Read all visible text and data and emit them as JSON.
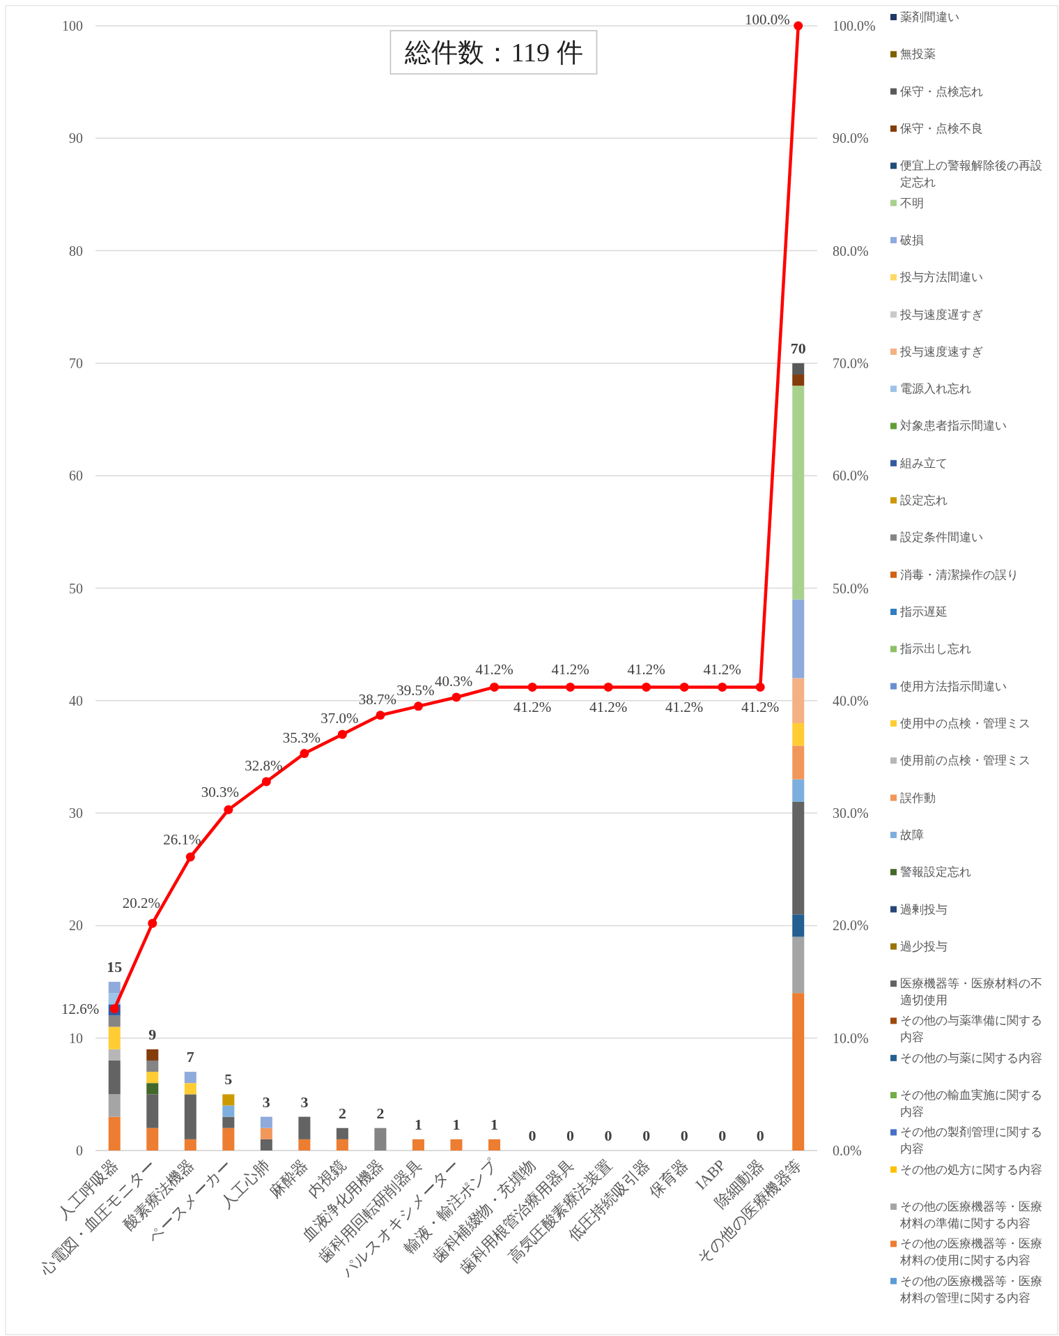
{
  "chart_data": {
    "type": "bar",
    "stacked": true,
    "title": "総件数：119 件",
    "grid": "y",
    "legend": "right",
    "categories": [
      "人工呼吸器",
      "心電図・血圧モニター",
      "酸素療法機器",
      "ペースメーカー",
      "人工心肺",
      "麻酔器",
      "内視鏡",
      "血液浄化用機器",
      "歯科用回転研削器具",
      "パルスオキシメーター",
      "輸液・輸注ポンプ",
      "歯科補綴物・充填物",
      "歯科用根管治療用器具",
      "高気圧酸素療法装置",
      "低圧持続吸引器",
      "保育器",
      "IABP",
      "除細動器",
      "その他の医療機器等"
    ],
    "ylim": [
      0,
      100
    ],
    "yticks": [
      0,
      10,
      20,
      30,
      40,
      50,
      60,
      70,
      80,
      90,
      100
    ],
    "y2lim": [
      0,
      100
    ],
    "y2ticks": [
      {
        "value": 0,
        "label": "0.0%"
      },
      {
        "value": 10,
        "label": "10.0%"
      },
      {
        "value": 20,
        "label": "20.0%"
      },
      {
        "value": 30,
        "label": "30.0%"
      },
      {
        "value": 40,
        "label": "40.0%"
      },
      {
        "value": 50,
        "label": "50.0%"
      },
      {
        "value": 60,
        "label": "60.0%"
      },
      {
        "value": 70,
        "label": "70.0%"
      },
      {
        "value": 80,
        "label": "80.0%"
      },
      {
        "value": 90,
        "label": "90.0%"
      },
      {
        "value": 100,
        "label": "100.0%"
      }
    ],
    "totals": [
      "15",
      "9",
      "7",
      "5",
      "3",
      "3",
      "2",
      "2",
      "1",
      "1",
      "1",
      "0",
      "0",
      "0",
      "0",
      "0",
      "0",
      "0",
      "70"
    ],
    "series": [
      {
        "name": "その他の医療機器等・医療材料の管理に関する内容",
        "color": "#5b9bd5",
        "values": [
          0,
          0,
          0,
          0,
          0,
          0,
          0,
          0,
          0,
          0,
          0,
          0,
          0,
          0,
          0,
          0,
          0,
          0,
          0
        ]
      },
      {
        "name": "その他の医療機器等・医療材料の使用に関する内容",
        "color": "#ed7d31",
        "values": [
          3,
          2,
          1,
          2,
          0,
          1,
          1,
          0,
          1,
          1,
          1,
          0,
          0,
          0,
          0,
          0,
          0,
          0,
          14
        ]
      },
      {
        "name": "その他の医療機器等・医療材料の準備に関する内容",
        "color": "#a5a5a5",
        "values": [
          2,
          0,
          0,
          0,
          0,
          0,
          0,
          0,
          0,
          0,
          0,
          0,
          0,
          0,
          0,
          0,
          0,
          0,
          5
        ]
      },
      {
        "name": "その他の処方に関する内容",
        "color": "#ffc000",
        "values": [
          0,
          0,
          0,
          0,
          0,
          0,
          0,
          0,
          0,
          0,
          0,
          0,
          0,
          0,
          0,
          0,
          0,
          0,
          0
        ]
      },
      {
        "name": "その他の製剤管理に関する内容",
        "color": "#4472c4",
        "values": [
          0,
          0,
          0,
          0,
          0,
          0,
          0,
          0,
          0,
          0,
          0,
          0,
          0,
          0,
          0,
          0,
          0,
          0,
          0
        ]
      },
      {
        "name": "その他の輸血実施に関する内容",
        "color": "#70ad47",
        "values": [
          0,
          0,
          0,
          0,
          0,
          0,
          0,
          0,
          0,
          0,
          0,
          0,
          0,
          0,
          0,
          0,
          0,
          0,
          0
        ]
      },
      {
        "name": "その他の与薬に関する内容",
        "color": "#255e91",
        "values": [
          0,
          0,
          0,
          0,
          0,
          0,
          0,
          0,
          0,
          0,
          0,
          0,
          0,
          0,
          0,
          0,
          0,
          0,
          2
        ]
      },
      {
        "name": "その他の与薬準備に関する内容",
        "color": "#9e480e",
        "values": [
          0,
          0,
          0,
          0,
          0,
          0,
          0,
          0,
          0,
          0,
          0,
          0,
          0,
          0,
          0,
          0,
          0,
          0,
          0
        ]
      },
      {
        "name": "医療機器等・医療材料の不適切使用",
        "color": "#636363",
        "values": [
          3,
          3,
          4,
          1,
          1,
          2,
          1,
          0,
          0,
          0,
          0,
          0,
          0,
          0,
          0,
          0,
          0,
          0,
          10
        ]
      },
      {
        "name": "過少投与",
        "color": "#997300",
        "values": [
          0,
          0,
          0,
          0,
          0,
          0,
          0,
          0,
          0,
          0,
          0,
          0,
          0,
          0,
          0,
          0,
          0,
          0,
          0
        ]
      },
      {
        "name": "過剰投与",
        "color": "#264478",
        "values": [
          0,
          0,
          0,
          0,
          0,
          0,
          0,
          0,
          0,
          0,
          0,
          0,
          0,
          0,
          0,
          0,
          0,
          0,
          0
        ]
      },
      {
        "name": "警報設定忘れ",
        "color": "#43682b",
        "values": [
          0,
          1,
          0,
          0,
          0,
          0,
          0,
          0,
          0,
          0,
          0,
          0,
          0,
          0,
          0,
          0,
          0,
          0,
          0
        ]
      },
      {
        "name": "故障",
        "color": "#7cafdd",
        "values": [
          0,
          0,
          0,
          1,
          0,
          0,
          0,
          0,
          0,
          0,
          0,
          0,
          0,
          0,
          0,
          0,
          0,
          0,
          2
        ]
      },
      {
        "name": "誤作動",
        "color": "#f1975a",
        "values": [
          0,
          0,
          0,
          0,
          1,
          0,
          0,
          0,
          0,
          0,
          0,
          0,
          0,
          0,
          0,
          0,
          0,
          0,
          3
        ]
      },
      {
        "name": "使用前の点検・管理ミス",
        "color": "#b7b7b7",
        "values": [
          1,
          0,
          0,
          0,
          0,
          0,
          0,
          0,
          0,
          0,
          0,
          0,
          0,
          0,
          0,
          0,
          0,
          0,
          0
        ]
      },
      {
        "name": "使用中の点検・管理ミス",
        "color": "#ffcd33",
        "values": [
          2,
          1,
          1,
          0,
          0,
          0,
          0,
          0,
          0,
          0,
          0,
          0,
          0,
          0,
          0,
          0,
          0,
          0,
          2
        ]
      },
      {
        "name": "使用方法指示間違い",
        "color": "#698ed0",
        "values": [
          0,
          0,
          0,
          0,
          0,
          0,
          0,
          0,
          0,
          0,
          0,
          0,
          0,
          0,
          0,
          0,
          0,
          0,
          0
        ]
      },
      {
        "name": "指示出し忘れ",
        "color": "#8cc168",
        "values": [
          0,
          0,
          0,
          0,
          0,
          0,
          0,
          0,
          0,
          0,
          0,
          0,
          0,
          0,
          0,
          0,
          0,
          0,
          0
        ]
      },
      {
        "name": "指示遅延",
        "color": "#327dc2",
        "values": [
          0,
          0,
          0,
          0,
          0,
          0,
          0,
          0,
          0,
          0,
          0,
          0,
          0,
          0,
          0,
          0,
          0,
          0,
          0
        ]
      },
      {
        "name": "消毒・清潔操作の誤り",
        "color": "#d26012",
        "values": [
          0,
          0,
          0,
          0,
          0,
          0,
          0,
          0,
          0,
          0,
          0,
          0,
          0,
          0,
          0,
          0,
          0,
          0,
          0
        ]
      },
      {
        "name": "設定条件間違い",
        "color": "#848484",
        "values": [
          1,
          1,
          0,
          0,
          0,
          0,
          0,
          2,
          0,
          0,
          0,
          0,
          0,
          0,
          0,
          0,
          0,
          0,
          0
        ]
      },
      {
        "name": "設定忘れ",
        "color": "#cc9a00",
        "values": [
          0,
          0,
          0,
          1,
          0,
          0,
          0,
          0,
          0,
          0,
          0,
          0,
          0,
          0,
          0,
          0,
          0,
          0,
          0
        ]
      },
      {
        "name": "組み立て",
        "color": "#335aa1",
        "values": [
          1,
          0,
          0,
          0,
          0,
          0,
          0,
          0,
          0,
          0,
          0,
          0,
          0,
          0,
          0,
          0,
          0,
          0,
          0
        ]
      },
      {
        "name": "対象患者指示間違い",
        "color": "#5e9e37",
        "values": [
          0,
          0,
          0,
          0,
          0,
          0,
          0,
          0,
          0,
          0,
          0,
          0,
          0,
          0,
          0,
          0,
          0,
          0,
          0
        ]
      },
      {
        "name": "電源入れ忘れ",
        "color": "#9dc3e6",
        "values": [
          1,
          0,
          0,
          0,
          0,
          0,
          0,
          0,
          0,
          0,
          0,
          0,
          0,
          0,
          0,
          0,
          0,
          0,
          0
        ]
      },
      {
        "name": "投与速度速すぎ",
        "color": "#f4b183",
        "values": [
          0,
          0,
          0,
          0,
          0,
          0,
          0,
          0,
          0,
          0,
          0,
          0,
          0,
          0,
          0,
          0,
          0,
          0,
          4
        ]
      },
      {
        "name": "投与速度遅すぎ",
        "color": "#c9c9c9",
        "values": [
          0,
          0,
          0,
          0,
          0,
          0,
          0,
          0,
          0,
          0,
          0,
          0,
          0,
          0,
          0,
          0,
          0,
          0,
          0
        ]
      },
      {
        "name": "投与方法間違い",
        "color": "#ffd966",
        "values": [
          0,
          0,
          0,
          0,
          0,
          0,
          0,
          0,
          0,
          0,
          0,
          0,
          0,
          0,
          0,
          0,
          0,
          0,
          0
        ]
      },
      {
        "name": "破損",
        "color": "#8faadc",
        "values": [
          1,
          0,
          1,
          0,
          1,
          0,
          0,
          0,
          0,
          0,
          0,
          0,
          0,
          0,
          0,
          0,
          0,
          0,
          7
        ]
      },
      {
        "name": "不明",
        "color": "#a9d18e",
        "values": [
          0,
          0,
          0,
          0,
          0,
          0,
          0,
          0,
          0,
          0,
          0,
          0,
          0,
          0,
          0,
          0,
          0,
          0,
          19
        ]
      },
      {
        "name": "便宜上の警報解除後の再設定忘れ",
        "color": "#1f4e79",
        "values": [
          0,
          0,
          0,
          0,
          0,
          0,
          0,
          0,
          0,
          0,
          0,
          0,
          0,
          0,
          0,
          0,
          0,
          0,
          0
        ]
      },
      {
        "name": "保守・点検不良",
        "color": "#843c0c",
        "values": [
          0,
          1,
          0,
          0,
          0,
          0,
          0,
          0,
          0,
          0,
          0,
          0,
          0,
          0,
          0,
          0,
          0,
          0,
          1
        ]
      },
      {
        "name": "保守・点検忘れ",
        "color": "#595959",
        "values": [
          0,
          0,
          0,
          0,
          0,
          0,
          0,
          0,
          0,
          0,
          0,
          0,
          0,
          0,
          0,
          0,
          0,
          0,
          1
        ]
      },
      {
        "name": "無投薬",
        "color": "#7f6000",
        "values": [
          0,
          0,
          0,
          0,
          0,
          0,
          0,
          0,
          0,
          0,
          0,
          0,
          0,
          0,
          0,
          0,
          0,
          0,
          0
        ]
      },
      {
        "name": "薬剤間違い",
        "color": "#203864",
        "values": [
          0,
          0,
          0,
          0,
          0,
          0,
          0,
          0,
          0,
          0,
          0,
          0,
          0,
          0,
          0,
          0,
          0,
          0,
          0
        ]
      },
      {
        "type": "line",
        "axis": "y2",
        "color": "#ff0000",
        "marker": "circle",
        "values": [
          12.6,
          20.2,
          26.1,
          30.3,
          32.8,
          35.3,
          37.0,
          38.7,
          39.5,
          40.3,
          41.2,
          41.2,
          41.2,
          41.2,
          41.2,
          41.2,
          41.2,
          41.2,
          100.0
        ],
        "value_labels": [
          "12.6%",
          "20.2%",
          "26.1%",
          "30.3%",
          "32.8%",
          "35.3%",
          "37.0%",
          "38.7%",
          "39.5%",
          "40.3%",
          "41.2%",
          "41.2%",
          "41.2%",
          "41.2%",
          "41.2%",
          "41.2%",
          "41.2%",
          "41.2%",
          "100.0%"
        ]
      }
    ]
  }
}
